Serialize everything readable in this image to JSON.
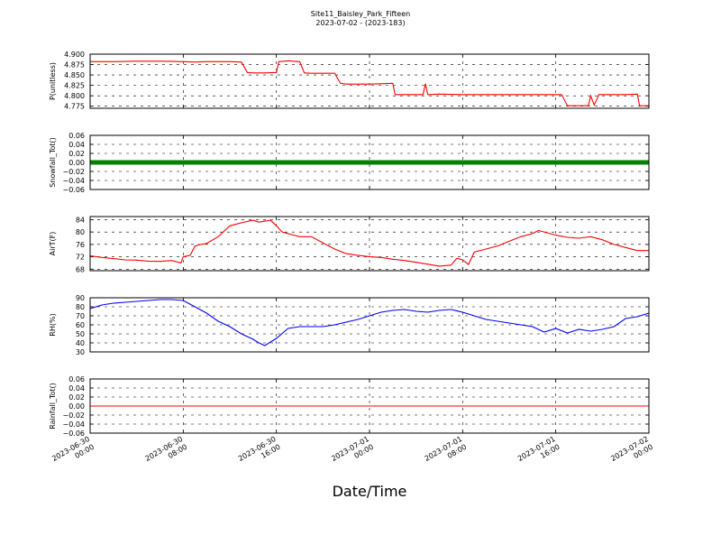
{
  "chart_data": {
    "type": "line",
    "title": "Site11_Baisley_Park_Fifteen",
    "subtitle": "2023-07-02 - (2023-183)",
    "xlabel": "Date/Time",
    "x_tick_labels": [
      [
        "2023-06-30",
        "00:00"
      ],
      [
        "2023-06-30",
        "08:00"
      ],
      [
        "2023-06-30",
        "16:00"
      ],
      [
        "2023-07-01",
        "00:00"
      ],
      [
        "2023-07-01",
        "08:00"
      ],
      [
        "2023-07-01",
        "16:00"
      ],
      [
        "2023-07-02",
        "00:00"
      ]
    ],
    "x_range_hours": [
      0,
      48
    ],
    "grid": true,
    "panels": [
      {
        "ylabel": "P(unitless)",
        "ylim": [
          4.77,
          4.9
        ],
        "yticks": [
          4.775,
          4.8,
          4.825,
          4.85,
          4.875,
          4.9
        ],
        "ytick_labels": [
          "4.775",
          "4.800",
          "4.825",
          "4.850",
          "4.875",
          "4.900"
        ],
        "color": "#ff0000",
        "style": "line",
        "x": [
          0,
          2,
          4,
          6,
          8,
          9,
          10,
          11,
          12,
          13,
          13.5,
          14,
          15,
          16,
          16.2,
          17,
          18,
          18.4,
          19,
          20,
          21,
          21.5,
          22,
          23,
          24,
          25,
          26,
          26.2,
          27,
          28,
          28.6,
          28.8,
          29,
          30,
          32,
          34,
          36,
          38,
          40,
          40.5,
          41,
          42,
          42.8,
          43,
          43.3,
          43.7,
          44,
          46,
          47,
          47.2,
          48
        ],
        "y": [
          4.882,
          4.882,
          4.883,
          4.883,
          4.882,
          4.881,
          4.882,
          4.882,
          4.882,
          4.881,
          4.856,
          4.855,
          4.855,
          4.856,
          4.882,
          4.884,
          4.882,
          4.855,
          4.854,
          4.854,
          4.854,
          4.83,
          4.828,
          4.828,
          4.828,
          4.829,
          4.83,
          4.803,
          4.803,
          4.803,
          4.803,
          4.829,
          4.803,
          4.804,
          4.803,
          4.803,
          4.803,
          4.803,
          4.803,
          4.803,
          4.776,
          4.776,
          4.776,
          4.8,
          4.778,
          4.803,
          4.803,
          4.803,
          4.804,
          4.776,
          4.776
        ]
      },
      {
        "ylabel": "Snowfall_Tot()",
        "ylim": [
          -0.06,
          0.06
        ],
        "yticks": [
          -0.06,
          -0.04,
          -0.02,
          0.0,
          0.02,
          0.04,
          0.06
        ],
        "ytick_labels": [
          "−0.06",
          "−0.04",
          "−0.02",
          "0.00",
          "0.02",
          "0.04",
          "0.06"
        ],
        "color": "#008000",
        "style": "markers",
        "x": [
          0,
          48
        ],
        "y": [
          0,
          0
        ]
      },
      {
        "ylabel": "AirT(F)",
        "ylim": [
          67.5,
          85
        ],
        "yticks": [
          68,
          72,
          76,
          80,
          84
        ],
        "ytick_labels": [
          "68",
          "72",
          "76",
          "80",
          "84"
        ],
        "color": "#ff0000",
        "style": "line",
        "x": [
          0,
          1,
          2,
          3,
          4,
          5,
          6,
          7,
          7.8,
          8,
          8.6,
          9,
          9.5,
          10,
          11,
          12,
          13,
          14,
          14.5,
          15,
          15.5,
          16,
          16.5,
          17,
          18,
          19,
          20,
          21,
          22,
          23,
          24,
          25,
          26,
          27,
          28,
          29,
          30,
          31,
          31.5,
          32,
          32.5,
          33,
          34,
          35,
          36,
          37,
          38,
          38.5,
          39,
          40,
          41,
          42,
          43,
          44,
          45,
          46,
          47,
          48
        ],
        "y": [
          72.3,
          71.8,
          71.4,
          71.0,
          70.9,
          70.6,
          70.5,
          70.8,
          70.0,
          72.0,
          72.5,
          75.5,
          76.0,
          76.3,
          78.5,
          82.0,
          83.0,
          83.8,
          83.2,
          83.5,
          83.8,
          82.0,
          80.0,
          79.5,
          78.5,
          78.5,
          76.5,
          74.5,
          73.0,
          72.5,
          72.0,
          71.8,
          71.2,
          70.8,
          70.2,
          69.6,
          69.0,
          69.3,
          71.5,
          71.0,
          69.5,
          73.5,
          74.5,
          75.5,
          77.0,
          78.5,
          79.5,
          80.5,
          80.0,
          79.0,
          78.3,
          78.0,
          78.5,
          77.5,
          76.0,
          75.0,
          74.0,
          74.0
        ]
      },
      {
        "ylabel": "RH(%)",
        "ylim": [
          30,
          90
        ],
        "yticks": [
          30,
          40,
          50,
          60,
          70,
          80,
          90
        ],
        "ytick_labels": [
          "30",
          "40",
          "50",
          "60",
          "70",
          "80",
          "90"
        ],
        "color": "#0000ff",
        "style": "line",
        "x": [
          0,
          1,
          2,
          3,
          4,
          5,
          6,
          7,
          8,
          9,
          10,
          11,
          12,
          13,
          14,
          14.5,
          15,
          16,
          17,
          18,
          19,
          20,
          21,
          22,
          23,
          24,
          25,
          26,
          27,
          28,
          29,
          30,
          31,
          32,
          33,
          34,
          35,
          36,
          37,
          38,
          39,
          40,
          41,
          42,
          43,
          44,
          45,
          46,
          47,
          48
        ],
        "y": [
          78,
          82,
          84,
          85,
          86,
          87,
          88,
          88,
          87,
          80,
          73,
          64,
          58,
          50,
          44,
          40,
          37,
          45,
          56,
          58,
          58,
          58,
          60,
          63,
          66,
          70,
          74,
          76,
          77,
          75,
          74,
          76,
          77,
          74,
          70,
          66,
          64,
          62,
          60,
          58,
          52,
          56,
          51,
          55,
          53,
          55,
          58,
          67,
          69,
          73
        ]
      },
      {
        "ylabel": "Rainfall_Tot()",
        "ylim": [
          -0.06,
          0.06
        ],
        "yticks": [
          -0.06,
          -0.04,
          -0.02,
          0.0,
          0.02,
          0.04,
          0.06
        ],
        "ytick_labels": [
          "−0.06",
          "−0.04",
          "−0.02",
          "0.00",
          "0.02",
          "0.04",
          "0.06"
        ],
        "color": "#ff0000",
        "style": "line",
        "x": [
          0,
          48
        ],
        "y": [
          0,
          0
        ]
      }
    ]
  }
}
